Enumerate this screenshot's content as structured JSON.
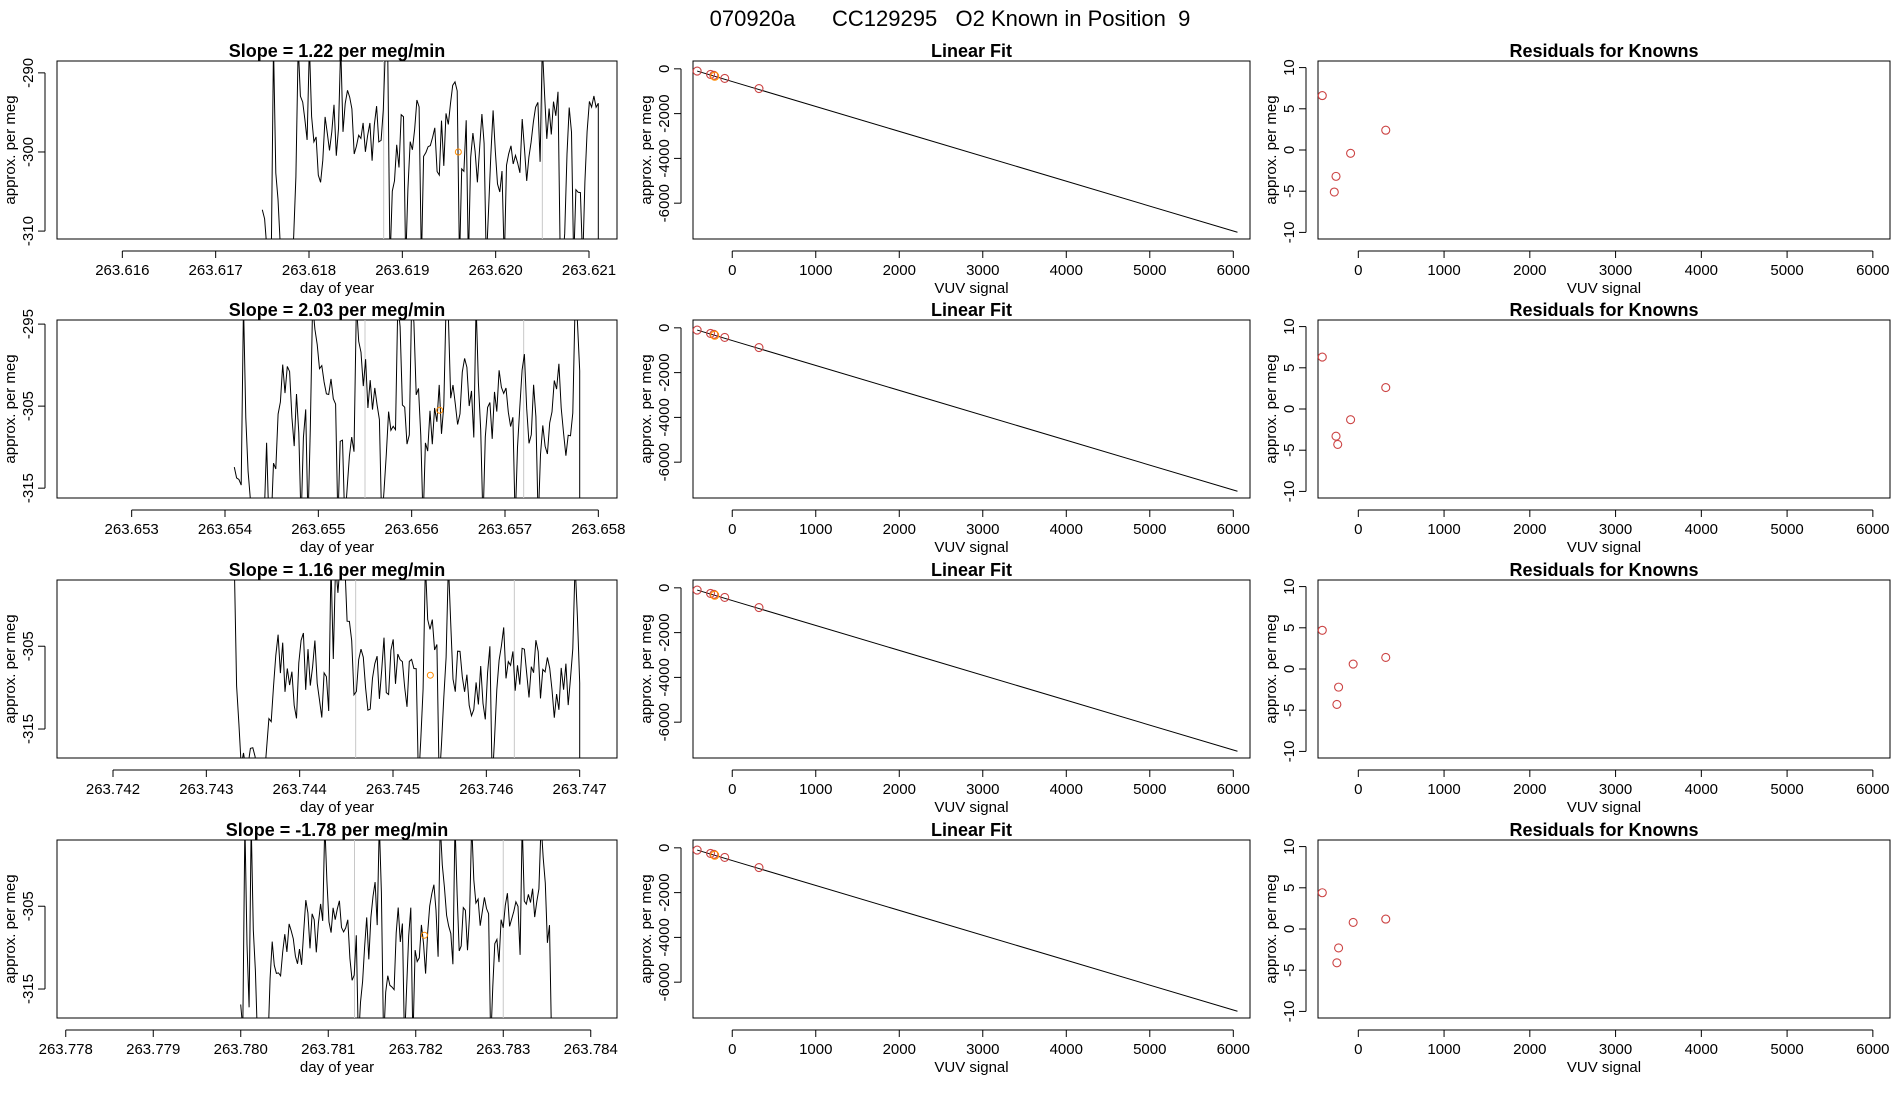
{
  "page_title": "070920a      CC129295   O2 Known in Position  9",
  "chart_data": [
    {
      "row": 1,
      "timeseries": {
        "type": "line",
        "title": "Slope =  1.22  per meg/min",
        "xlabel": "day of year",
        "ylabel": "approx. per meg",
        "xlim": [
          263.6153,
          263.6213
        ],
        "ylim": [
          -311,
          -288.5
        ],
        "xticks": [
          {
            "v": 263.616,
            "label": "263.616"
          },
          {
            "v": 263.617,
            "label": "263.617"
          },
          {
            "v": 263.618,
            "label": "263.618"
          },
          {
            "v": 263.619,
            "label": "263.619"
          },
          {
            "v": 263.62,
            "label": "263.620"
          },
          {
            "v": 263.621,
            "label": "263.621"
          }
        ],
        "yticks": [
          {
            "v": -310,
            "label": "-310"
          },
          {
            "v": -300,
            "label": "-300"
          },
          {
            "v": -290,
            "label": "-290"
          }
        ],
        "x_start": 263.6175,
        "x_end": 263.6211,
        "vlines": [
          263.6188,
          263.6205
        ],
        "marker": {
          "x": 263.6196,
          "y": -300,
          "color": "#ff8c00"
        },
        "seed": 11,
        "mean": -298.5,
        "amp": 9
      },
      "linear_fit": {
        "type": "line",
        "title": "Linear Fit",
        "xlabel": "VUV signal",
        "ylabel": "approx. per meg",
        "xlim": [
          -470,
          6200
        ],
        "ylim": [
          -7600,
          350
        ],
        "xticks": [
          {
            "v": 0,
            "label": "0"
          },
          {
            "v": 1000,
            "label": "1000"
          },
          {
            "v": 2000,
            "label": "2000"
          },
          {
            "v": 3000,
            "label": "3000"
          },
          {
            "v": 4000,
            "label": "4000"
          },
          {
            "v": 5000,
            "label": "5000"
          },
          {
            "v": 6000,
            "label": "6000"
          }
        ],
        "yticks": [
          {
            "v": 0,
            "label": "0"
          },
          {
            "v": -2000,
            "label": "-2000"
          },
          {
            "v": -4000,
            "label": "-4000"
          },
          {
            "v": -6000,
            "label": "-6000"
          }
        ],
        "fit_line": {
          "x0": -420,
          "y0": -100,
          "x1": 6050,
          "y1": -7300
        },
        "points": [
          {
            "x": -420,
            "y": -100,
            "color": "#cc4444"
          },
          {
            "x": -260,
            "y": -250,
            "color": "#cc4444"
          },
          {
            "x": -220,
            "y": -290,
            "color": "#cc4444"
          },
          {
            "x": -210,
            "y": -330,
            "color": "#ff8c00"
          },
          {
            "x": -90,
            "y": -430,
            "color": "#cc4444"
          },
          {
            "x": 320,
            "y": -880,
            "color": "#cc4444"
          }
        ]
      },
      "residuals": {
        "type": "scatter",
        "title": "Residuals for Knowns",
        "xlabel": "VUV signal",
        "ylabel": "approx. per meg",
        "xlim": [
          -470,
          6200
        ],
        "ylim": [
          -10.8,
          10.8
        ],
        "xticks": [
          {
            "v": 0,
            "label": "0"
          },
          {
            "v": 1000,
            "label": "1000"
          },
          {
            "v": 2000,
            "label": "2000"
          },
          {
            "v": 3000,
            "label": "3000"
          },
          {
            "v": 4000,
            "label": "4000"
          },
          {
            "v": 5000,
            "label": "5000"
          },
          {
            "v": 6000,
            "label": "6000"
          }
        ],
        "yticks": [
          {
            "v": -10,
            "label": "-10"
          },
          {
            "v": -5,
            "label": "-5"
          },
          {
            "v": 0,
            "label": "0"
          },
          {
            "v": 5,
            "label": "5"
          },
          {
            "v": 10,
            "label": "10"
          }
        ],
        "points": [
          {
            "x": -420,
            "y": 6.6
          },
          {
            "x": -260,
            "y": -3.2
          },
          {
            "x": -280,
            "y": -5.1
          },
          {
            "x": -90,
            "y": -0.4
          },
          {
            "x": 320,
            "y": 2.4
          }
        ]
      }
    },
    {
      "row": 2,
      "timeseries": {
        "type": "line",
        "title": "Slope =  2.03  per meg/min",
        "xlabel": "day of year",
        "ylabel": "approx. per meg",
        "xlim": [
          263.6522,
          263.6582
        ],
        "ylim": [
          -316.2,
          -294.5
        ],
        "xticks": [
          {
            "v": 263.653,
            "label": "263.653"
          },
          {
            "v": 263.654,
            "label": "263.654"
          },
          {
            "v": 263.655,
            "label": "263.655"
          },
          {
            "v": 263.656,
            "label": "263.656"
          },
          {
            "v": 263.657,
            "label": "263.657"
          },
          {
            "v": 263.658,
            "label": "263.658"
          }
        ],
        "yticks": [
          {
            "v": -315,
            "label": "-315"
          },
          {
            "v": -305,
            "label": "-305"
          },
          {
            "v": -295,
            "label": "-295"
          }
        ],
        "x_start": 263.6541,
        "x_end": 263.6578,
        "vlines": [
          263.6555,
          263.6572
        ],
        "marker": {
          "x": 263.6563,
          "y": -305.5,
          "color": "#ff8c00"
        },
        "seed": 23,
        "mean": -304.5,
        "amp": 9
      },
      "linear_fit": {
        "type": "line",
        "title": "Linear Fit",
        "xlabel": "VUV signal",
        "ylabel": "approx. per meg",
        "xlim": [
          -470,
          6200
        ],
        "ylim": [
          -7600,
          350
        ],
        "xticks": [
          {
            "v": 0,
            "label": "0"
          },
          {
            "v": 1000,
            "label": "1000"
          },
          {
            "v": 2000,
            "label": "2000"
          },
          {
            "v": 3000,
            "label": "3000"
          },
          {
            "v": 4000,
            "label": "4000"
          },
          {
            "v": 5000,
            "label": "5000"
          },
          {
            "v": 6000,
            "label": "6000"
          }
        ],
        "yticks": [
          {
            "v": 0,
            "label": "0"
          },
          {
            "v": -2000,
            "label": "-2000"
          },
          {
            "v": -4000,
            "label": "-4000"
          },
          {
            "v": -6000,
            "label": "-6000"
          }
        ],
        "fit_line": {
          "x0": -420,
          "y0": -100,
          "x1": 6050,
          "y1": -7300
        },
        "points": [
          {
            "x": -420,
            "y": -100,
            "color": "#cc4444"
          },
          {
            "x": -260,
            "y": -250,
            "color": "#cc4444"
          },
          {
            "x": -220,
            "y": -290,
            "color": "#cc4444"
          },
          {
            "x": -210,
            "y": -330,
            "color": "#ff8c00"
          },
          {
            "x": -90,
            "y": -430,
            "color": "#cc4444"
          },
          {
            "x": 320,
            "y": -880,
            "color": "#cc4444"
          }
        ]
      },
      "residuals": {
        "type": "scatter",
        "title": "Residuals for Knowns",
        "xlabel": "VUV signal",
        "ylabel": "approx. per meg",
        "xlim": [
          -470,
          6200
        ],
        "ylim": [
          -10.8,
          10.8
        ],
        "xticks": [
          {
            "v": 0,
            "label": "0"
          },
          {
            "v": 1000,
            "label": "1000"
          },
          {
            "v": 2000,
            "label": "2000"
          },
          {
            "v": 3000,
            "label": "3000"
          },
          {
            "v": 4000,
            "label": "4000"
          },
          {
            "v": 5000,
            "label": "5000"
          },
          {
            "v": 6000,
            "label": "6000"
          }
        ],
        "yticks": [
          {
            "v": -10,
            "label": "-10"
          },
          {
            "v": -5,
            "label": "-5"
          },
          {
            "v": 0,
            "label": "0"
          },
          {
            "v": 5,
            "label": "5"
          },
          {
            "v": 10,
            "label": "10"
          }
        ],
        "points": [
          {
            "x": -420,
            "y": 6.3
          },
          {
            "x": -260,
            "y": -3.3
          },
          {
            "x": -240,
            "y": -4.3
          },
          {
            "x": -90,
            "y": -1.3
          },
          {
            "x": 320,
            "y": 2.6
          }
        ]
      }
    },
    {
      "row": 3,
      "timeseries": {
        "type": "line",
        "title": "Slope =  1.16  per meg/min",
        "xlabel": "day of year",
        "ylabel": "approx. per meg",
        "xlim": [
          263.7414,
          263.7474
        ],
        "ylim": [
          -318.5,
          -297
        ],
        "xticks": [
          {
            "v": 263.742,
            "label": "263.742"
          },
          {
            "v": 263.743,
            "label": "263.743"
          },
          {
            "v": 263.744,
            "label": "263.744"
          },
          {
            "v": 263.745,
            "label": "263.745"
          },
          {
            "v": 263.746,
            "label": "263.746"
          },
          {
            "v": 263.747,
            "label": "263.747"
          }
        ],
        "yticks": [
          {
            "v": -315,
            "label": "-315"
          },
          {
            "v": -305,
            "label": "-305"
          }
        ],
        "x_start": 263.7433,
        "x_end": 263.747,
        "vlines": [
          263.7446,
          263.7463
        ],
        "marker": {
          "x": 263.7454,
          "y": -308.5,
          "color": "#ff8c00"
        },
        "seed": 37,
        "mean": -308.5,
        "amp": 8
      },
      "linear_fit": {
        "type": "line",
        "title": "Linear Fit",
        "xlabel": "VUV signal",
        "ylabel": "approx. per meg",
        "xlim": [
          -470,
          6200
        ],
        "ylim": [
          -7600,
          350
        ],
        "xticks": [
          {
            "v": 0,
            "label": "0"
          },
          {
            "v": 1000,
            "label": "1000"
          },
          {
            "v": 2000,
            "label": "2000"
          },
          {
            "v": 3000,
            "label": "3000"
          },
          {
            "v": 4000,
            "label": "4000"
          },
          {
            "v": 5000,
            "label": "5000"
          },
          {
            "v": 6000,
            "label": "6000"
          }
        ],
        "yticks": [
          {
            "v": 0,
            "label": "0"
          },
          {
            "v": -2000,
            "label": "-2000"
          },
          {
            "v": -4000,
            "label": "-4000"
          },
          {
            "v": -6000,
            "label": "-6000"
          }
        ],
        "fit_line": {
          "x0": -420,
          "y0": -100,
          "x1": 6050,
          "y1": -7300
        },
        "points": [
          {
            "x": -420,
            "y": -100,
            "color": "#cc4444"
          },
          {
            "x": -260,
            "y": -250,
            "color": "#cc4444"
          },
          {
            "x": -220,
            "y": -290,
            "color": "#cc4444"
          },
          {
            "x": -210,
            "y": -330,
            "color": "#ff8c00"
          },
          {
            "x": -90,
            "y": -430,
            "color": "#cc4444"
          },
          {
            "x": 320,
            "y": -880,
            "color": "#cc4444"
          }
        ]
      },
      "residuals": {
        "type": "scatter",
        "title": "Residuals for Knowns",
        "xlabel": "VUV signal",
        "ylabel": "approx. per meg",
        "xlim": [
          -470,
          6200
        ],
        "ylim": [
          -10.8,
          10.8
        ],
        "xticks": [
          {
            "v": 0,
            "label": "0"
          },
          {
            "v": 1000,
            "label": "1000"
          },
          {
            "v": 2000,
            "label": "2000"
          },
          {
            "v": 3000,
            "label": "3000"
          },
          {
            "v": 4000,
            "label": "4000"
          },
          {
            "v": 5000,
            "label": "5000"
          },
          {
            "v": 6000,
            "label": "6000"
          }
        ],
        "yticks": [
          {
            "v": -10,
            "label": "-10"
          },
          {
            "v": -5,
            "label": "-5"
          },
          {
            "v": 0,
            "label": "0"
          },
          {
            "v": 5,
            "label": "5"
          },
          {
            "v": 10,
            "label": "10"
          }
        ],
        "points": [
          {
            "x": -420,
            "y": 4.7
          },
          {
            "x": -230,
            "y": -2.2
          },
          {
            "x": -250,
            "y": -4.3
          },
          {
            "x": -60,
            "y": 0.6
          },
          {
            "x": 320,
            "y": 1.4
          }
        ]
      }
    },
    {
      "row": 4,
      "timeseries": {
        "type": "line",
        "title": "Slope =  -1.78  per meg/min",
        "xlabel": "day of year",
        "ylabel": "approx. per meg",
        "xlim": [
          263.7779,
          263.7843
        ],
        "ylim": [
          -318.5,
          -297
        ],
        "xticks": [
          {
            "v": 263.778,
            "label": "263.778"
          },
          {
            "v": 263.779,
            "label": "263.779"
          },
          {
            "v": 263.78,
            "label": "263.780"
          },
          {
            "v": 263.781,
            "label": "263.781"
          },
          {
            "v": 263.782,
            "label": "263.782"
          },
          {
            "v": 263.783,
            "label": "263.783"
          },
          {
            "v": 263.784,
            "label": "263.784"
          }
        ],
        "yticks": [
          {
            "v": -315,
            "label": "-315"
          },
          {
            "v": -305,
            "label": "-305"
          }
        ],
        "x_start": 263.78,
        "x_end": 263.7836,
        "vlines": [
          263.7813,
          263.783
        ],
        "marker": {
          "x": 263.7821,
          "y": -308.5,
          "color": "#ff8c00"
        },
        "seed": 53,
        "mean": -308.5,
        "amp": 8
      },
      "linear_fit": {
        "type": "line",
        "title": "Linear Fit",
        "xlabel": "VUV signal",
        "ylabel": "approx. per meg",
        "xlim": [
          -470,
          6200
        ],
        "ylim": [
          -7600,
          350
        ],
        "xticks": [
          {
            "v": 0,
            "label": "0"
          },
          {
            "v": 1000,
            "label": "1000"
          },
          {
            "v": 2000,
            "label": "2000"
          },
          {
            "v": 3000,
            "label": "3000"
          },
          {
            "v": 4000,
            "label": "4000"
          },
          {
            "v": 5000,
            "label": "5000"
          },
          {
            "v": 6000,
            "label": "6000"
          }
        ],
        "yticks": [
          {
            "v": 0,
            "label": "0"
          },
          {
            "v": -2000,
            "label": "-2000"
          },
          {
            "v": -4000,
            "label": "-4000"
          },
          {
            "v": -6000,
            "label": "-6000"
          }
        ],
        "fit_line": {
          "x0": -420,
          "y0": -100,
          "x1": 6050,
          "y1": -7300
        },
        "points": [
          {
            "x": -420,
            "y": -100,
            "color": "#cc4444"
          },
          {
            "x": -260,
            "y": -250,
            "color": "#cc4444"
          },
          {
            "x": -220,
            "y": -290,
            "color": "#cc4444"
          },
          {
            "x": -210,
            "y": -330,
            "color": "#ff8c00"
          },
          {
            "x": -90,
            "y": -430,
            "color": "#cc4444"
          },
          {
            "x": 320,
            "y": -880,
            "color": "#cc4444"
          }
        ]
      },
      "residuals": {
        "type": "scatter",
        "title": "Residuals for Knowns",
        "xlabel": "VUV signal",
        "ylabel": "approx. per meg",
        "xlim": [
          -470,
          6200
        ],
        "ylim": [
          -10.8,
          10.8
        ],
        "xticks": [
          {
            "v": 0,
            "label": "0"
          },
          {
            "v": 1000,
            "label": "1000"
          },
          {
            "v": 2000,
            "label": "2000"
          },
          {
            "v": 3000,
            "label": "3000"
          },
          {
            "v": 4000,
            "label": "4000"
          },
          {
            "v": 5000,
            "label": "5000"
          },
          {
            "v": 6000,
            "label": "6000"
          }
        ],
        "yticks": [
          {
            "v": -10,
            "label": "-10"
          },
          {
            "v": -5,
            "label": "-5"
          },
          {
            "v": 0,
            "label": "0"
          },
          {
            "v": 5,
            "label": "5"
          },
          {
            "v": 10,
            "label": "10"
          }
        ],
        "points": [
          {
            "x": -420,
            "y": 4.4
          },
          {
            "x": -230,
            "y": -2.3
          },
          {
            "x": -250,
            "y": -4.1
          },
          {
            "x": -60,
            "y": 0.8
          },
          {
            "x": 320,
            "y": 1.2
          }
        ]
      }
    }
  ]
}
